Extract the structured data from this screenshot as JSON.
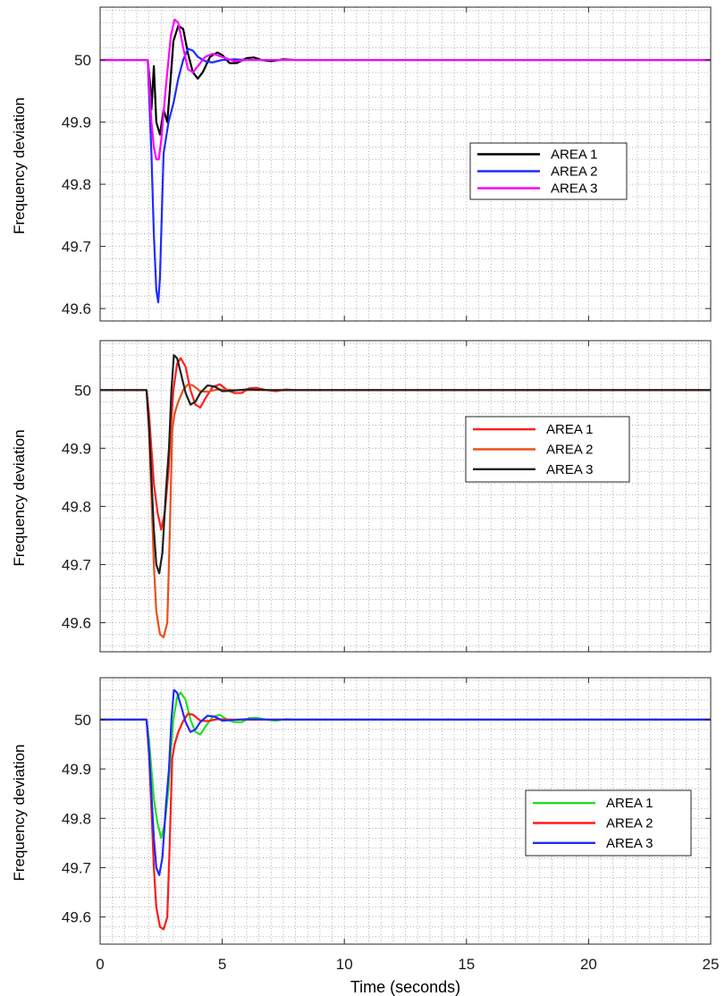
{
  "chart_data": [
    {
      "type": "line",
      "ylabel": "Frequency deviation",
      "xlim": [
        0,
        25
      ],
      "ylim": [
        49.58,
        50.085
      ],
      "yticks": [
        49.6,
        49.7,
        49.8,
        49.9,
        50
      ],
      "grid": true,
      "legend_position": "right",
      "series": [
        {
          "name": "AREA 1",
          "color": "#000000",
          "x": [
            0,
            1.95,
            2.0,
            2.05,
            2.1,
            2.2,
            2.3,
            2.45,
            2.6,
            2.75,
            2.85,
            3.0,
            3.2,
            3.4,
            3.6,
            3.8,
            4.0,
            4.2,
            4.5,
            4.8,
            5.0,
            5.3,
            5.6,
            6.0,
            6.3,
            6.6,
            7.0,
            7.5,
            8.0,
            9.0,
            25
          ],
          "y": [
            50,
            50,
            49.98,
            49.96,
            49.92,
            49.99,
            49.9,
            49.88,
            49.92,
            49.9,
            49.95,
            50.03,
            50.055,
            50.05,
            50.01,
            49.98,
            49.97,
            49.98,
            50.005,
            50.012,
            50.008,
            49.995,
            49.995,
            50.003,
            50.004,
            50.0,
            49.998,
            50.001,
            50.0,
            50.0,
            50
          ]
        },
        {
          "name": "AREA 2",
          "color": "#1f2bff",
          "x": [
            0,
            1.95,
            2.0,
            2.1,
            2.2,
            2.3,
            2.38,
            2.45,
            2.6,
            2.8,
            3.0,
            3.2,
            3.4,
            3.6,
            3.8,
            4.0,
            4.3,
            4.6,
            5.0,
            5.5,
            6.0,
            7.0,
            25
          ],
          "y": [
            50,
            50,
            49.95,
            49.85,
            49.72,
            49.63,
            49.61,
            49.65,
            49.85,
            49.9,
            49.93,
            49.97,
            50.0,
            50.018,
            50.015,
            50.005,
            49.998,
            49.996,
            50.0,
            50.001,
            50.0,
            50.0,
            50
          ]
        },
        {
          "name": "AREA 3",
          "color": "#ff00ff",
          "x": [
            0,
            1.95,
            2.0,
            2.1,
            2.2,
            2.3,
            2.4,
            2.5,
            2.7,
            2.9,
            3.05,
            3.2,
            3.4,
            3.6,
            3.8,
            4.0,
            4.3,
            4.6,
            5.0,
            5.5,
            6.0,
            7.0,
            25
          ],
          "y": [
            50,
            50,
            49.97,
            49.9,
            49.86,
            49.84,
            49.84,
            49.87,
            49.96,
            50.04,
            50.065,
            50.06,
            50.02,
            49.985,
            49.98,
            49.99,
            50.005,
            50.01,
            50.005,
            49.998,
            50.0,
            50.0,
            50
          ]
        }
      ]
    },
    {
      "type": "line",
      "ylabel": "Frequency deviation",
      "xlim": [
        0,
        25
      ],
      "ylim": [
        49.55,
        50.085
      ],
      "yticks": [
        49.6,
        49.7,
        49.8,
        49.9,
        50
      ],
      "grid": true,
      "legend_position": "right",
      "series": [
        {
          "name": "AREA 1",
          "color": "#ff2020",
          "x": [
            0,
            1.9,
            2.0,
            2.1,
            2.2,
            2.35,
            2.5,
            2.65,
            2.8,
            2.9,
            3.0,
            3.15,
            3.3,
            3.5,
            3.7,
            3.9,
            4.1,
            4.3,
            4.6,
            4.9,
            5.2,
            5.5,
            5.8,
            6.1,
            6.4,
            6.8,
            7.2,
            7.6,
            8.0,
            9.0,
            25
          ],
          "y": [
            50,
            50,
            49.96,
            49.9,
            49.84,
            49.79,
            49.76,
            49.79,
            49.86,
            49.94,
            50.0,
            50.045,
            50.055,
            50.04,
            50.0,
            49.975,
            49.97,
            49.985,
            50.005,
            50.01,
            50.0,
            49.995,
            49.995,
            50.003,
            50.004,
            50.0,
            49.998,
            50.001,
            50.0,
            50.0,
            50
          ]
        },
        {
          "name": "AREA 2",
          "color": "#e8501a",
          "x": [
            0,
            1.9,
            2.0,
            2.1,
            2.2,
            2.3,
            2.45,
            2.6,
            2.75,
            2.85,
            2.95,
            3.05,
            3.2,
            3.4,
            3.6,
            3.8,
            4.1,
            4.4,
            4.8,
            5.5,
            6.0,
            7.0,
            25
          ],
          "y": [
            50,
            50,
            49.93,
            49.82,
            49.7,
            49.62,
            49.58,
            49.575,
            49.6,
            49.75,
            49.93,
            49.96,
            49.98,
            50.0,
            50.01,
            50.008,
            49.998,
            49.997,
            50.001,
            50.0,
            50.0,
            50.0,
            50
          ]
        },
        {
          "name": "AREA 3",
          "color": "#202020",
          "x": [
            0,
            1.9,
            2.0,
            2.1,
            2.2,
            2.3,
            2.42,
            2.55,
            2.7,
            2.82,
            2.92,
            3.02,
            3.15,
            3.3,
            3.5,
            3.7,
            3.9,
            4.1,
            4.4,
            4.7,
            5.0,
            5.4,
            6.0,
            7.0,
            25
          ],
          "y": [
            50,
            50,
            49.94,
            49.85,
            49.76,
            49.7,
            49.685,
            49.72,
            49.83,
            49.9,
            50.0,
            50.06,
            50.055,
            50.03,
            49.995,
            49.975,
            49.98,
            49.995,
            50.008,
            50.006,
            49.998,
            49.999,
            50.001,
            50.0,
            50
          ]
        }
      ]
    },
    {
      "type": "line",
      "ylabel": "Frequency deviation",
      "xlabel": "Time (seconds)",
      "xlim": [
        0,
        25
      ],
      "ylim": [
        49.545,
        50.085
      ],
      "xticks": [
        0,
        5,
        10,
        15,
        20,
        25
      ],
      "yticks": [
        49.6,
        49.7,
        49.8,
        49.9,
        50
      ],
      "grid": true,
      "legend_position": "bottom-right",
      "series": [
        {
          "name": "AREA 1",
          "color": "#22e022",
          "x": [
            0,
            1.9,
            2.0,
            2.1,
            2.2,
            2.35,
            2.5,
            2.65,
            2.8,
            2.9,
            3.0,
            3.15,
            3.3,
            3.5,
            3.7,
            3.9,
            4.1,
            4.3,
            4.6,
            4.9,
            5.2,
            5.5,
            5.8,
            6.1,
            6.4,
            6.8,
            7.2,
            7.6,
            8.0,
            9.0,
            25
          ],
          "y": [
            50,
            50,
            49.96,
            49.9,
            49.84,
            49.79,
            49.76,
            49.79,
            49.86,
            49.94,
            50.0,
            50.045,
            50.055,
            50.04,
            50.0,
            49.975,
            49.97,
            49.985,
            50.005,
            50.01,
            50.0,
            49.995,
            49.995,
            50.003,
            50.004,
            50.0,
            49.998,
            50.001,
            50.0,
            50.0,
            50
          ]
        },
        {
          "name": "AREA 2",
          "color": "#ff1a1a",
          "x": [
            0,
            1.9,
            2.0,
            2.1,
            2.2,
            2.3,
            2.45,
            2.6,
            2.75,
            2.85,
            2.95,
            3.05,
            3.2,
            3.4,
            3.6,
            3.8,
            4.1,
            4.4,
            4.8,
            5.5,
            6.0,
            7.0,
            25
          ],
          "y": [
            50,
            50,
            49.93,
            49.82,
            49.7,
            49.62,
            49.58,
            49.575,
            49.6,
            49.75,
            49.92,
            49.95,
            49.975,
            49.997,
            50.012,
            50.01,
            49.998,
            49.997,
            50.001,
            50.0,
            50.0,
            50.0,
            50
          ]
        },
        {
          "name": "AREA 3",
          "color": "#1f2bff",
          "x": [
            0,
            1.9,
            2.0,
            2.1,
            2.2,
            2.3,
            2.42,
            2.55,
            2.7,
            2.82,
            2.92,
            3.02,
            3.15,
            3.3,
            3.5,
            3.7,
            3.9,
            4.1,
            4.4,
            4.7,
            5.0,
            5.4,
            6.0,
            7.0,
            25
          ],
          "y": [
            50,
            50,
            49.94,
            49.85,
            49.76,
            49.7,
            49.685,
            49.72,
            49.83,
            49.9,
            50.0,
            50.06,
            50.055,
            50.03,
            49.995,
            49.975,
            49.98,
            49.995,
            50.008,
            50.006,
            49.998,
            49.999,
            50.001,
            50.0,
            50
          ]
        }
      ]
    }
  ]
}
